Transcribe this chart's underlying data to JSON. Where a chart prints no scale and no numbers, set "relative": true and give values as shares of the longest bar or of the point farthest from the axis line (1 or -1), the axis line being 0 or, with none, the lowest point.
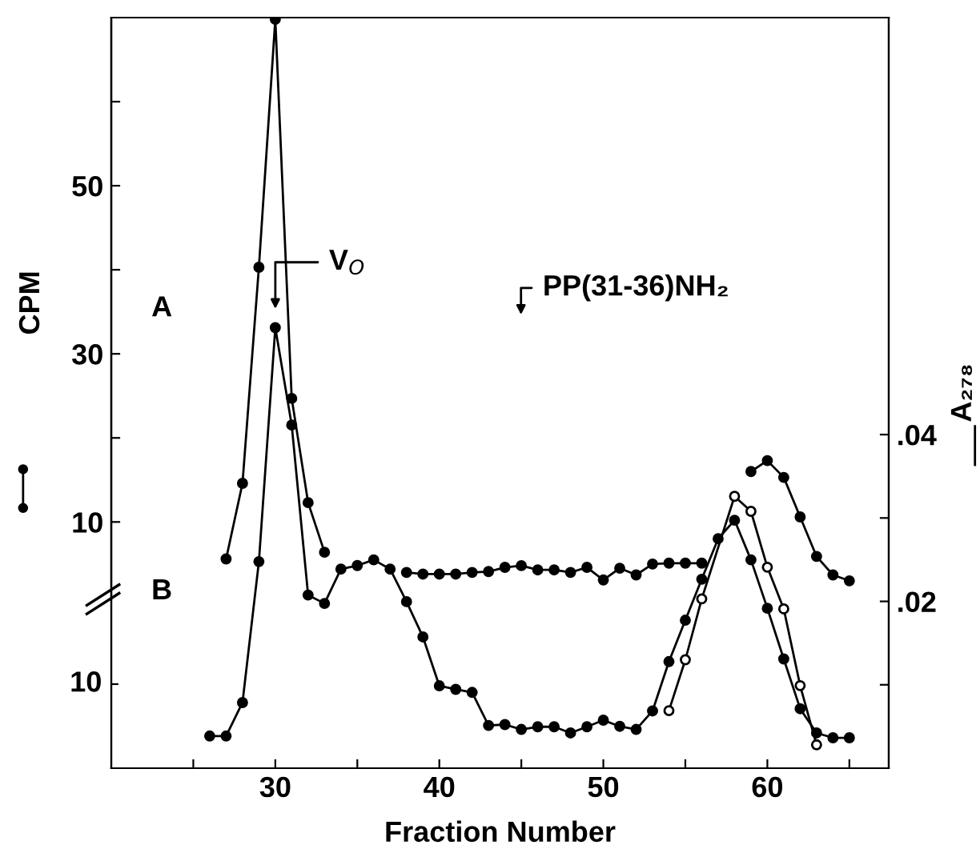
{
  "chart_data": [
    {
      "type": "line",
      "marker": "circle",
      "line_style": "solid",
      "grid": false,
      "legend": false,
      "tick_labels": "y",
      "xlim": [
        20,
        67.4
      ],
      "ylim": [
        0.7,
        70
      ],
      "yticks": [
        10,
        {
          "value": 20,
          "label": null
        },
        30,
        {
          "value": 40,
          "label": null
        },
        50,
        {
          "value": 60,
          "label": null
        }
      ],
      "series": [
        {
          "color": "#000000",
          "x": [
            27,
            28,
            29,
            30,
            31,
            32,
            33,
            34,
            35,
            36,
            37,
            38,
            39,
            40,
            41,
            42,
            43,
            44,
            45,
            46,
            47,
            48,
            49,
            50,
            51,
            52,
            53,
            54,
            55,
            56,
            57,
            58,
            59,
            60,
            61,
            62,
            63,
            64,
            65
          ],
          "values": [
            5.6,
            14.6,
            40.3,
            69.8,
            24.7,
            12.3,
            6.4,
            null,
            null,
            null,
            null,
            4.0,
            3.8,
            3.8,
            3.8,
            4.0,
            4.1,
            4.6,
            4.8,
            4.3,
            4.3,
            4.0,
            4.6,
            3.1,
            4.5,
            3.7,
            5.0,
            5.1,
            5.1,
            5.1,
            null,
            null,
            16.0,
            17.3,
            15.3,
            10.6,
            5.9,
            3.7,
            3.0
          ]
        }
      ],
      "annotations": [
        "A",
        "V$_{O}$",
        "PP(31-36)NH₂"
      ]
    },
    {
      "type": "line",
      "marker": "circle",
      "line_style": "solid",
      "grid": false,
      "legend": false,
      "relative": true,
      "xlim": [
        20,
        67.4
      ],
      "y2lim": [
        0,
        0.09
      ],
      "xticks": [
        {
          "value": 25,
          "label": null
        },
        30,
        {
          "value": 35,
          "label": null
        },
        40,
        {
          "value": 45,
          "label": null
        },
        50,
        {
          "value": 55,
          "label": null
        },
        60,
        {
          "value": 65,
          "label": null
        }
      ],
      "y2ticks": [
        {
          "value": 0.01,
          "label": null
        },
        {
          "value": 0.02,
          "label": ".02"
        },
        {
          "value": 0.03,
          "label": null
        },
        {
          "value": 0.04,
          "label": ".04"
        }
      ],
      "xlabel": "Fraction Number",
      "ylabel": "CPM",
      "y2label": "A₂₇₈",
      "series": [
        {
          "color": "#000000",
          "x": [
            26,
            27,
            28,
            29,
            30,
            31,
            32,
            33,
            34,
            35,
            36,
            37,
            38,
            39,
            40,
            41,
            42,
            43,
            44,
            45,
            46,
            47,
            48,
            49,
            50,
            51,
            52,
            53,
            54,
            55,
            56,
            57,
            58,
            59,
            60,
            61,
            62,
            63,
            64,
            65
          ],
          "values": [
            0.073,
            0.073,
            0.149,
            0.469,
            1,
            0.779,
            0.393,
            0.374,
            0.452,
            0.46,
            0.473,
            0.452,
            0.378,
            0.298,
            0.187,
            0.179,
            0.172,
            0.097,
            0.099,
            0.088,
            0.094,
            0.094,
            0.08,
            0.094,
            0.109,
            0.095,
            0.088,
            0.13,
            0.242,
            0.336,
            0.429,
            0.521,
            0.563,
            0.473,
            0.363,
            0.248,
            0.135,
            0.08,
            0.069,
            0.069
          ]
        },
        {
          "color": "#000000",
          "axis": "y2",
          "x": [
            54,
            55,
            56,
            58,
            59,
            60,
            61,
            62,
            63
          ],
          "values": [
            0.0069,
            0.013,
            0.0203,
            0.0326,
            0.0308,
            0.0241,
            0.0191,
            0.0099,
            0.0028
          ]
        }
      ],
      "annotations": [
        "B",
        "10"
      ]
    }
  ]
}
